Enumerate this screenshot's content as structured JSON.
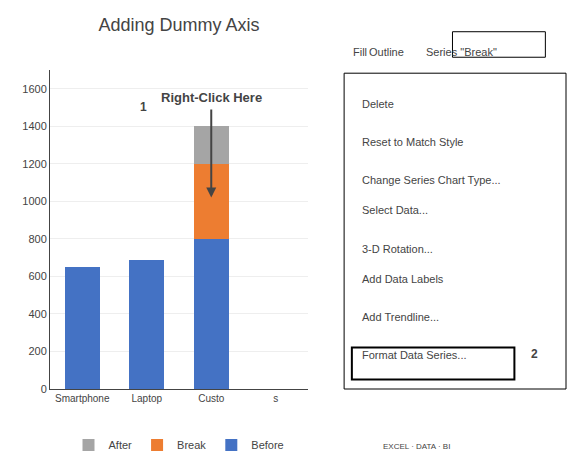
{
  "chart_data": {
    "type": "bar",
    "title": "Adding Dummy Axis",
    "categories": [
      "Smartphone",
      "Laptop",
      "Custo",
      "s"
    ],
    "series": [
      {
        "name": "Before",
        "color": "#4472C4",
        "values": [
          650,
          690,
          800,
          0
        ]
      },
      {
        "name": "Break",
        "color": "#ED7D31",
        "values": [
          0,
          0,
          400,
          0
        ]
      },
      {
        "name": "After",
        "color": "#A5A5A5",
        "values": [
          0,
          0,
          200,
          0
        ]
      }
    ],
    "stacked": true,
    "ylim": [
      0,
      1700
    ],
    "yticks": [
      0,
      200,
      400,
      600,
      800,
      1000,
      1200,
      1400,
      1600
    ],
    "grid": true,
    "legend": "bottom",
    "annotations": [
      "Right-Click Here",
      "1",
      "Fill",
      "Outline",
      "Series \"Break\"",
      "Delete",
      "Reset to Match Style",
      "Change Series Chart Type...",
      "Select Data...",
      "3-D Rotation...",
      "Add Data Labels",
      "Add Trendline...",
      "Format Data Series...",
      "2",
      "EXCEL · DATA · BI"
    ]
  }
}
